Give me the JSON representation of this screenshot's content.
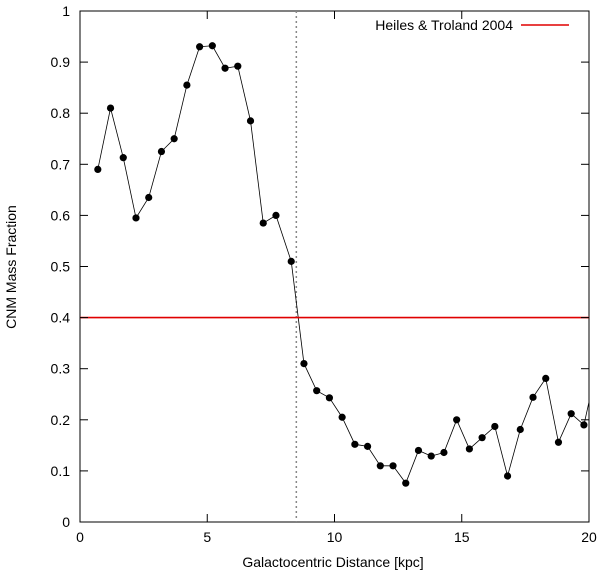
{
  "chart_data": {
    "type": "line",
    "title": "",
    "xlabel": "Galactocentric Distance [kpc]",
    "ylabel": "CNM Mass Fraction",
    "xlim": [
      0,
      20
    ],
    "ylim": [
      0,
      1
    ],
    "xticks": [
      0,
      5,
      10,
      15,
      20
    ],
    "xtick_labels": [
      "0",
      "5",
      "10",
      "15",
      "20"
    ],
    "yticks": [
      0,
      0.1,
      0.2,
      0.3,
      0.4,
      0.5,
      0.6,
      0.7,
      0.8,
      0.9,
      1
    ],
    "ytick_labels": [
      "0",
      "0.1",
      "0.2",
      "0.3",
      "0.4",
      "0.5",
      "0.6",
      "0.7",
      "0.8",
      "0.9",
      "1"
    ],
    "grid": false,
    "legend_position": "top-right",
    "series": [
      {
        "color": "#000000",
        "marker": "circle",
        "x": [
          0.7,
          1.2,
          1.7,
          2.2,
          2.7,
          3.2,
          3.7,
          4.2,
          4.7,
          5.2,
          5.7,
          6.2,
          6.7,
          7.2,
          7.7,
          8.3,
          8.8,
          9.3,
          9.8,
          10.3,
          10.8,
          11.3,
          11.8,
          12.3,
          12.8,
          13.3,
          13.8,
          14.3,
          14.8,
          15.3,
          15.8,
          16.3,
          16.8,
          17.3,
          17.8,
          18.3,
          18.8,
          19.3,
          19.8,
          20.0
        ],
        "y": [
          0.69,
          0.81,
          0.713,
          0.595,
          0.635,
          0.725,
          0.75,
          0.855,
          0.93,
          0.932,
          0.888,
          0.892,
          0.785,
          0.585,
          0.6,
          0.51,
          0.31,
          0.257,
          0.243,
          0.205,
          0.152,
          0.148,
          0.11,
          0.11,
          0.076,
          0.14,
          0.129,
          0.136,
          0.2,
          0.143,
          0.165,
          0.187,
          0.09,
          0.181,
          0.244,
          0.281,
          0.156,
          0.212,
          0.19,
          0.235
        ]
      },
      {
        "name": "Heiles & Troland 2004",
        "color": "#e00000",
        "style": "horizontal-line",
        "y_value": 0.4
      }
    ],
    "reference_lines": [
      {
        "axis": "x",
        "value": 8.5,
        "style": "dotted",
        "color": "#888888"
      }
    ]
  }
}
